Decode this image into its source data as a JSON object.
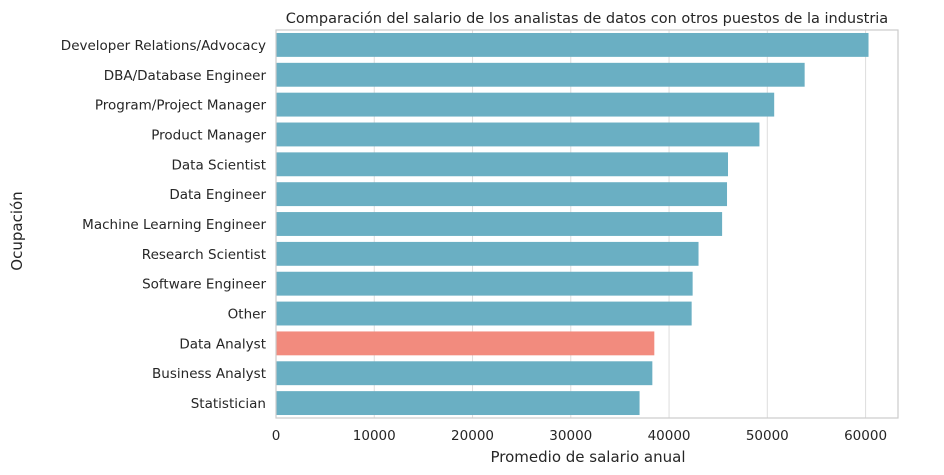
{
  "chart_data": {
    "type": "bar",
    "orientation": "horizontal",
    "title": "Comparación del salario de los analistas de datos con otros puestos de la industria",
    "xlabel": "Promedio de salario anual",
    "ylabel": "Ocupación",
    "categories": [
      "Developer Relations/Advocacy",
      "DBA/Database Engineer",
      "Program/Project Manager",
      "Product Manager",
      "Data Scientist",
      "Data Engineer",
      "Machine Learning Engineer",
      "Research Scientist",
      "Software Engineer",
      "Other",
      "Data Analyst",
      "Business Analyst",
      "Statistician"
    ],
    "values": [
      60300,
      53800,
      50700,
      49200,
      46000,
      45900,
      45400,
      43000,
      42400,
      42300,
      38500,
      38300,
      37000
    ],
    "highlight": "Data Analyst",
    "xlim": [
      0,
      63300
    ],
    "xticks": [
      0,
      10000,
      20000,
      30000,
      40000,
      50000,
      60000
    ],
    "grid": true,
    "colors": {
      "bar": "#6aafc3",
      "highlight": "#f28b7e",
      "grid": "#dddddd",
      "frame": "#cccccc"
    }
  }
}
